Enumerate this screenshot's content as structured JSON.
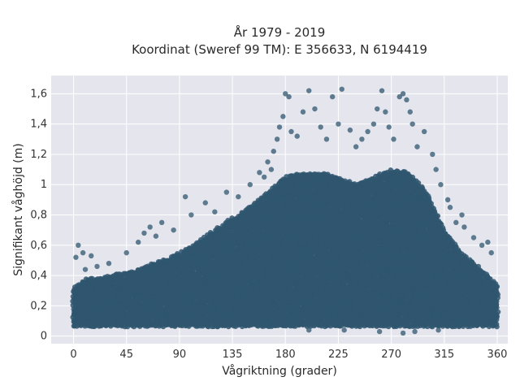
{
  "colors": {
    "background": "#ffffff",
    "plot_area": "#e5e5ee",
    "grid": "#ffffff",
    "marker": "#2f566e"
  },
  "chart_data": {
    "type": "scatter",
    "title": "År 1979 - 2019",
    "subtitle": "Koordinat (Sweref 99 TM): E 356633, N 6194419",
    "xlabel": "Vågriktning (grader)",
    "ylabel": "Signifikant våghöjd (m)",
    "xlim": [
      -19,
      369
    ],
    "ylim": [
      -0.05,
      1.72
    ],
    "xticks": [
      0,
      45,
      90,
      135,
      180,
      225,
      270,
      315,
      360
    ],
    "xtick_labels": [
      "0",
      "45",
      "90",
      "135",
      "180",
      "225",
      "270",
      "315",
      "360"
    ],
    "yticks": [
      0,
      0.2,
      0.4,
      0.6,
      0.8,
      1.0,
      1.2,
      1.4,
      1.6
    ],
    "ytick_labels": [
      "0",
      "0,2",
      "0,4",
      "0,6",
      "0,8",
      "1",
      "1,2",
      "1,4",
      "1,6"
    ],
    "grid": true,
    "legend": "none",
    "envelope": {
      "direction_deg": [
        0,
        10,
        20,
        30,
        40,
        45,
        60,
        75,
        90,
        105,
        120,
        135,
        150,
        165,
        180,
        195,
        210,
        225,
        240,
        255,
        270,
        285,
        300,
        315,
        330,
        345,
        355,
        360
      ],
      "upper_bulk_m": [
        0.32,
        0.38,
        0.38,
        0.4,
        0.42,
        0.42,
        0.46,
        0.5,
        0.55,
        0.62,
        0.7,
        0.78,
        0.85,
        0.95,
        1.05,
        1.08,
        1.08,
        1.05,
        1.0,
        1.05,
        1.1,
        1.08,
        0.95,
        0.7,
        0.55,
        0.45,
        0.38,
        0.33
      ],
      "lower_bulk_m": 0.07
    },
    "series": [
      {
        "values": [
          {
            "x": 2,
            "y": 0.52
          },
          {
            "x": 4,
            "y": 0.6
          },
          {
            "x": 8,
            "y": 0.55
          },
          {
            "x": 15,
            "y": 0.53
          },
          {
            "x": 45,
            "y": 0.55
          },
          {
            "x": 55,
            "y": 0.62
          },
          {
            "x": 60,
            "y": 0.68
          },
          {
            "x": 65,
            "y": 0.72
          },
          {
            "x": 75,
            "y": 0.75
          },
          {
            "x": 95,
            "y": 0.92
          },
          {
            "x": 112,
            "y": 0.88
          },
          {
            "x": 130,
            "y": 0.95
          },
          {
            "x": 150,
            "y": 1.0
          },
          {
            "x": 158,
            "y": 1.08
          },
          {
            "x": 165,
            "y": 1.15
          },
          {
            "x": 170,
            "y": 1.22
          },
          {
            "x": 173,
            "y": 1.3
          },
          {
            "x": 175,
            "y": 1.38
          },
          {
            "x": 178,
            "y": 1.45
          },
          {
            "x": 180,
            "y": 1.6
          },
          {
            "x": 183,
            "y": 1.58
          },
          {
            "x": 185,
            "y": 1.35
          },
          {
            "x": 190,
            "y": 1.32
          },
          {
            "x": 195,
            "y": 1.48
          },
          {
            "x": 200,
            "y": 1.62
          },
          {
            "x": 205,
            "y": 1.5
          },
          {
            "x": 210,
            "y": 1.38
          },
          {
            "x": 215,
            "y": 1.3
          },
          {
            "x": 220,
            "y": 1.58
          },
          {
            "x": 225,
            "y": 1.4
          },
          {
            "x": 228,
            "y": 1.63
          },
          {
            "x": 235,
            "y": 1.36
          },
          {
            "x": 240,
            "y": 1.25
          },
          {
            "x": 245,
            "y": 1.3
          },
          {
            "x": 250,
            "y": 1.35
          },
          {
            "x": 255,
            "y": 1.4
          },
          {
            "x": 258,
            "y": 1.5
          },
          {
            "x": 262,
            "y": 1.62
          },
          {
            "x": 265,
            "y": 1.48
          },
          {
            "x": 268,
            "y": 1.38
          },
          {
            "x": 272,
            "y": 1.3
          },
          {
            "x": 277,
            "y": 1.58
          },
          {
            "x": 280,
            "y": 1.6
          },
          {
            "x": 283,
            "y": 1.56
          },
          {
            "x": 286,
            "y": 1.48
          },
          {
            "x": 288,
            "y": 1.4
          },
          {
            "x": 292,
            "y": 1.25
          },
          {
            "x": 298,
            "y": 1.35
          },
          {
            "x": 305,
            "y": 1.2
          },
          {
            "x": 308,
            "y": 1.1
          },
          {
            "x": 312,
            "y": 1.0
          },
          {
            "x": 318,
            "y": 0.9
          },
          {
            "x": 325,
            "y": 0.75
          },
          {
            "x": 332,
            "y": 0.72
          },
          {
            "x": 340,
            "y": 0.65
          },
          {
            "x": 347,
            "y": 0.6
          },
          {
            "x": 352,
            "y": 0.62
          },
          {
            "x": 355,
            "y": 0.55
          },
          {
            "x": 330,
            "y": 0.8
          },
          {
            "x": 320,
            "y": 0.85
          },
          {
            "x": 162,
            "y": 1.05
          },
          {
            "x": 168,
            "y": 1.1
          },
          {
            "x": 140,
            "y": 0.92
          },
          {
            "x": 120,
            "y": 0.82
          },
          {
            "x": 100,
            "y": 0.8
          },
          {
            "x": 85,
            "y": 0.7
          },
          {
            "x": 70,
            "y": 0.66
          },
          {
            "x": 30,
            "y": 0.48
          },
          {
            "x": 20,
            "y": 0.46
          },
          {
            "x": 10,
            "y": 0.44
          },
          {
            "x": 200,
            "y": 0.04
          },
          {
            "x": 260,
            "y": 0.03
          },
          {
            "x": 280,
            "y": 0.02
          },
          {
            "x": 290,
            "y": 0.03
          },
          {
            "x": 230,
            "y": 0.04
          },
          {
            "x": 310,
            "y": 0.04
          }
        ]
      }
    ]
  }
}
